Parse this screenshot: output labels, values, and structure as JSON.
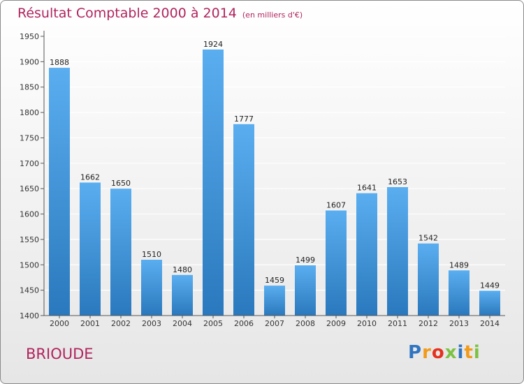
{
  "chart_data": {
    "type": "bar",
    "title": "Résultat Comptable 2000 à 2014",
    "subtitle": "(en milliers d'€)",
    "categories": [
      "2000",
      "2001",
      "2002",
      "2003",
      "2004",
      "2005",
      "2006",
      "2007",
      "2008",
      "2009",
      "2010",
      "2011",
      "2012",
      "2013",
      "2014"
    ],
    "values": [
      1888,
      1662,
      1650,
      1510,
      1480,
      1924,
      1777,
      1459,
      1499,
      1607,
      1641,
      1653,
      1542,
      1489,
      1449
    ],
    "xlabel": "",
    "ylabel": "",
    "ylim": [
      1400,
      1950
    ],
    "yticks": [
      1400,
      1450,
      1500,
      1550,
      1600,
      1650,
      1700,
      1750,
      1800,
      1850,
      1900,
      1950
    ],
    "grid": true
  },
  "footer": {
    "commune": "BRIOUDE",
    "logo_letters": [
      "P",
      "r",
      "o",
      "x",
      "i",
      "t",
      "i"
    ]
  },
  "colors": {
    "title": "#b0245e",
    "bar_light": "#5aaef0",
    "bar_dark": "#2a78bd",
    "logo": [
      "#2f74c0",
      "#f29a1a",
      "#e5321e",
      "#7cc242",
      "#2f74c0",
      "#f29a1a",
      "#7cc242"
    ]
  }
}
